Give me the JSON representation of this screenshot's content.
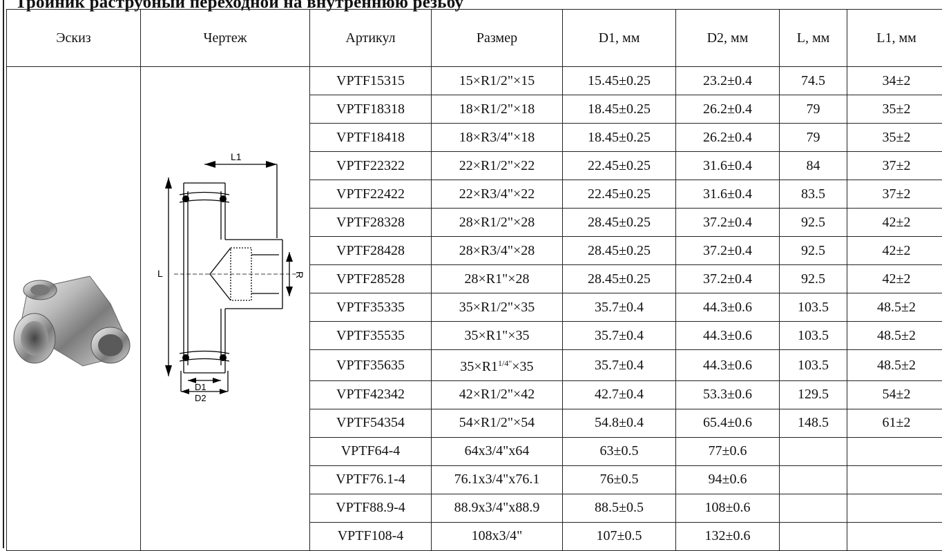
{
  "heading": "Тройник раструбный переходной на внутреннюю резьбу",
  "columns": [
    "Эскиз",
    "Чертеж",
    "Артикул",
    "Размер",
    "D1, мм",
    "D2, мм",
    "L, мм",
    "L1, мм"
  ],
  "drawing_labels": {
    "L1": "L1",
    "L": "L",
    "R": "R",
    "D1": "D1",
    "D2": "D2"
  },
  "rows": [
    {
      "article": "VPTF15315",
      "size": "15×R1/2\"×15",
      "d1": "15.45±0.25",
      "d2": "23.2±0.4",
      "l": "74.5",
      "l1": "34±2"
    },
    {
      "article": "VPTF18318",
      "size": "18×R1/2\"×18",
      "d1": "18.45±0.25",
      "d2": "26.2±0.4",
      "l": "79",
      "l1": "35±2"
    },
    {
      "article": "VPTF18418",
      "size": "18×R3/4\"×18",
      "d1": "18.45±0.25",
      "d2": "26.2±0.4",
      "l": "79",
      "l1": "35±2"
    },
    {
      "article": "VPTF22322",
      "size": "22×R1/2\"×22",
      "d1": "22.45±0.25",
      "d2": "31.6±0.4",
      "l": "84",
      "l1": "37±2"
    },
    {
      "article": "VPTF22422",
      "size": "22×R3/4\"×22",
      "d1": "22.45±0.25",
      "d2": "31.6±0.4",
      "l": "83.5",
      "l1": "37±2"
    },
    {
      "article": "VPTF28328",
      "size": "28×R1/2\"×28",
      "d1": "28.45±0.25",
      "d2": "37.2±0.4",
      "l": "92.5",
      "l1": "42±2"
    },
    {
      "article": "VPTF28428",
      "size": "28×R3/4\"×28",
      "d1": "28.45±0.25",
      "d2": "37.2±0.4",
      "l": "92.5",
      "l1": "42±2"
    },
    {
      "article": "VPTF28528",
      "size": "28×R1\"×28",
      "d1": "28.45±0.25",
      "d2": "37.2±0.4",
      "l": "92.5",
      "l1": "42±2"
    },
    {
      "article": "VPTF35335",
      "size": "35×R1/2\"×35",
      "d1": "35.7±0.4",
      "d2": "44.3±0.6",
      "l": "103.5",
      "l1": "48.5±2"
    },
    {
      "article": "VPTF35535",
      "size": "35×R1\"×35",
      "d1": "35.7±0.4",
      "d2": "44.3±0.6",
      "l": "103.5",
      "l1": "48.5±2"
    },
    {
      "article": "VPTF35635",
      "size_pre": "35×R1",
      "size_sup": "1/4\"",
      "size_post": "×35",
      "d1": "35.7±0.4",
      "d2": "44.3±0.6",
      "l": "103.5",
      "l1": "48.5±2"
    },
    {
      "article": "VPTF42342",
      "size": "42×R1/2\"×42",
      "d1": "42.7±0.4",
      "d2": "53.3±0.6",
      "l": "129.5",
      "l1": "54±2"
    },
    {
      "article": "VPTF54354",
      "size": "54×R1/2\"×54",
      "d1": "54.8±0.4",
      "d2": "65.4±0.6",
      "l": "148.5",
      "l1": "61±2"
    },
    {
      "article": "VPTF64-4",
      "size": "64x3/4\"x64",
      "d1": "63±0.5",
      "d2": "77±0.6",
      "l": "",
      "l1": ""
    },
    {
      "article": "VPTF76.1-4",
      "size": "76.1x3/4\"x76.1",
      "d1": "76±0.5",
      "d2": "94±0.6",
      "l": "",
      "l1": ""
    },
    {
      "article": "VPTF88.9-4",
      "size": "88.9x3/4\"x88.9",
      "d1": "88.5±0.5",
      "d2": "108±0.6",
      "l": "",
      "l1": ""
    },
    {
      "article": "VPTF108-4",
      "size": "108x3/4\"",
      "d1": "107±0.5",
      "d2": "132±0.6",
      "l": "",
      "l1": ""
    }
  ]
}
